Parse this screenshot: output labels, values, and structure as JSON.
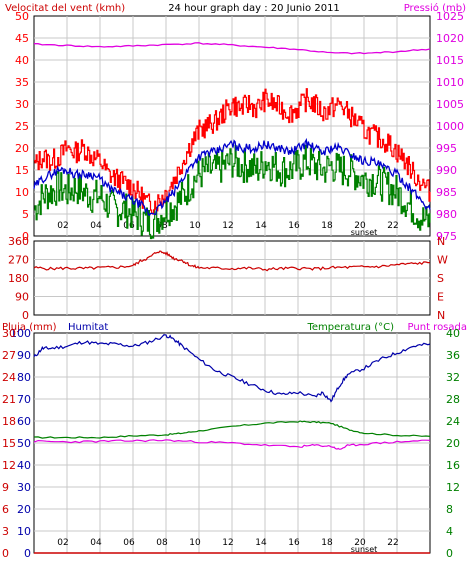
{
  "header": {
    "left": "Velocitat del vent (kmh)",
    "center": "24 hour graph day : 20 Junio 2011",
    "right": "Pressió (mb)"
  },
  "colors": {
    "wind_gust": "#ff0000",
    "wind_avg": "#0000cc",
    "wind_low": "#008000",
    "pressure": "#e000e0",
    "direction": "#cc0000",
    "humidity": "#0000aa",
    "temperature": "#008000",
    "dewpoint": "#e000e0",
    "rain": "#cc0000"
  },
  "chart_data": [
    {
      "type": "line",
      "id": "wind-pressure",
      "left_axis": {
        "label": "Velocitat del vent (kmh)",
        "ylim": [
          0,
          50
        ],
        "ticks": [
          "0",
          "5",
          "10",
          "15",
          "20",
          "25",
          "30",
          "35",
          "40",
          "45",
          "50"
        ]
      },
      "right_axis": {
        "label": "Pressió (mb)",
        "ylim": [
          975,
          1025
        ],
        "ticks": [
          "975",
          "980",
          "985",
          "990",
          "995",
          "1000",
          "1005",
          "1010",
          "1015",
          "1020",
          "1025"
        ]
      },
      "x_ticks": [
        "02",
        "04",
        "06",
        "08",
        "10",
        "12",
        "14",
        "16",
        "18",
        "20",
        "22"
      ],
      "x_extra": [
        "sunset"
      ],
      "grid": true,
      "series": [
        {
          "key": "gust",
          "hours": [
            0,
            0.5,
            1,
            1.5,
            2,
            2.5,
            3,
            3.5,
            4,
            4.5,
            5,
            5.5,
            6,
            6.5,
            7,
            7.5,
            8,
            8.5,
            9,
            9.5,
            10,
            10.5,
            11,
            11.5,
            12,
            12.5,
            13,
            13.5,
            14,
            14.5,
            15,
            15.5,
            16,
            16.5,
            17,
            17.5,
            18,
            18.5,
            19,
            19.5,
            20,
            20.5,
            21,
            21.5,
            22,
            22.5,
            23,
            23.5,
            24
          ],
          "values": [
            16,
            18,
            17,
            18,
            20,
            19,
            20,
            18,
            17,
            14,
            13,
            12,
            11,
            9,
            7,
            8,
            10,
            13,
            17,
            21,
            24,
            25,
            26,
            28,
            30,
            29,
            30,
            29,
            31,
            30,
            29,
            28,
            29,
            31,
            30,
            28,
            29,
            30,
            28,
            26,
            24,
            23,
            22,
            21,
            19,
            17,
            14,
            12,
            10
          ]
        },
        {
          "key": "avg",
          "hours": [
            0,
            0.5,
            1,
            1.5,
            2,
            2.5,
            3,
            3.5,
            4,
            4.5,
            5,
            5.5,
            6,
            6.5,
            7,
            7.5,
            8,
            8.5,
            9,
            9.5,
            10,
            10.5,
            11,
            11.5,
            12,
            12.5,
            13,
            13.5,
            14,
            14.5,
            15,
            15.5,
            16,
            16.5,
            17,
            17.5,
            18,
            18.5,
            19,
            19.5,
            20,
            20.5,
            21,
            21.5,
            22,
            22.5,
            23,
            23.5,
            24
          ],
          "values": [
            11,
            13,
            14,
            15,
            15,
            14,
            14,
            14,
            13,
            11,
            10,
            9,
            8,
            7,
            5,
            6,
            8,
            10,
            13,
            16,
            18,
            19,
            19,
            20,
            21,
            20,
            20,
            20,
            21,
            20,
            20,
            19,
            20,
            21,
            20,
            19,
            20,
            20,
            19,
            18,
            17,
            17,
            16,
            15,
            14,
            12,
            10,
            8,
            6
          ]
        },
        {
          "key": "low",
          "hours": [
            0,
            0.5,
            1,
            1.5,
            2,
            2.5,
            3,
            3.5,
            4,
            4.5,
            5,
            5.5,
            6,
            6.5,
            7,
            7.5,
            8,
            8.5,
            9,
            9.5,
            10,
            10.5,
            11,
            11.5,
            12,
            12.5,
            13,
            13.5,
            14,
            14.5,
            15,
            15.5,
            16,
            16.5,
            17,
            17.5,
            18,
            18.5,
            19,
            19.5,
            20,
            20.5,
            21,
            21.5,
            22,
            22.5,
            23,
            23.5,
            24
          ],
          "values": [
            6,
            9,
            10,
            11,
            10,
            11,
            10,
            9,
            9,
            7,
            6,
            6,
            5,
            4,
            3,
            4,
            6,
            7,
            9,
            12,
            14,
            15,
            15,
            16,
            17,
            16,
            16,
            15,
            17,
            16,
            15,
            15,
            16,
            17,
            16,
            15,
            16,
            15,
            15,
            14,
            13,
            13,
            12,
            11,
            10,
            8,
            6,
            4,
            3
          ]
        },
        {
          "key": "pressure",
          "hours": [
            0,
            2,
            4,
            6,
            8,
            10,
            12,
            14,
            16,
            18,
            20,
            22,
            24
          ],
          "values": [
            1018.6,
            1018.3,
            1018.0,
            1018.2,
            1018.5,
            1018.8,
            1018.4,
            1017.9,
            1017.4,
            1016.6,
            1016.5,
            1016.9,
            1017.5
          ]
        }
      ]
    },
    {
      "type": "line",
      "id": "direction",
      "left_axis": {
        "ylim": [
          0,
          360
        ],
        "ticks": [
          "0",
          "90",
          "180",
          "270",
          "360"
        ]
      },
      "right_axis": {
        "ticks": [
          "N",
          "E",
          "S",
          "W",
          "N"
        ]
      },
      "series": [
        {
          "key": "direction",
          "hours": [
            0,
            1,
            2,
            3,
            4,
            5,
            6,
            6.5,
            7,
            7.5,
            8,
            8.5,
            9,
            9.5,
            10,
            11,
            12,
            13,
            14,
            15,
            16,
            17,
            18,
            19,
            20,
            21,
            22,
            23,
            24
          ],
          "values": [
            230,
            225,
            228,
            226,
            230,
            232,
            240,
            265,
            280,
            310,
            300,
            275,
            265,
            240,
            230,
            228,
            226,
            228,
            222,
            226,
            228,
            224,
            230,
            232,
            234,
            236,
            245,
            250,
            255
          ]
        }
      ]
    },
    {
      "type": "line",
      "id": "humidity-temp",
      "left_axis_outer": {
        "label": "Pluja (mm)",
        "ticks": [
          "0",
          "3",
          "6",
          "9",
          "12",
          "15",
          "18",
          "21",
          "24",
          "27",
          "30"
        ]
      },
      "left_axis_inner": {
        "label": "Humitat",
        "ticks": [
          "0",
          "10",
          "20",
          "30",
          "40",
          "50",
          "60",
          "70",
          "80",
          "90",
          "100"
        ]
      },
      "right_axis": {
        "label": "Temperatura (°C)",
        "ticks": [
          "0",
          "4",
          "8",
          "12",
          "16",
          "20",
          "24",
          "28",
          "32",
          "36",
          "40"
        ]
      },
      "right_label_2": "Punt rosada",
      "x_ticks": [
        "02",
        "04",
        "06",
        "08",
        "10",
        "12",
        "14",
        "16",
        "18",
        "20",
        "22"
      ],
      "x_extra": [
        "sunset"
      ],
      "series": [
        {
          "key": "humidity",
          "hours": [
            0,
            0.5,
            1,
            2,
            3,
            4,
            5,
            6,
            7,
            8,
            8.5,
            9,
            10,
            11,
            12,
            13,
            14,
            15,
            16,
            17,
            17.5,
            18,
            18.5,
            19,
            20,
            21,
            22,
            23,
            24
          ],
          "values": [
            89,
            93,
            93,
            94,
            96,
            95,
            95,
            94,
            96,
            99,
            97,
            94,
            88,
            83,
            80,
            77,
            74,
            72,
            73,
            71,
            73,
            69,
            76,
            81,
            84,
            88,
            91,
            94,
            95
          ]
        },
        {
          "key": "temperature",
          "hours": [
            0,
            2,
            4,
            6,
            8,
            9,
            10,
            12,
            14,
            16,
            17,
            18,
            19,
            20,
            22,
            24
          ],
          "values": [
            21,
            21,
            21,
            21.3,
            21.5,
            21.8,
            22.2,
            23,
            23.6,
            23.9,
            23.8,
            23.6,
            22.5,
            21.8,
            21.4,
            21.2
          ]
        },
        {
          "key": "dewpoint",
          "hours": [
            0,
            2,
            4,
            6,
            8,
            10,
            12,
            14,
            16,
            17,
            18,
            18.5,
            19,
            20,
            22,
            24
          ],
          "values": [
            20.3,
            20.2,
            20.3,
            20.4,
            20.5,
            20.2,
            20,
            19.6,
            19.3,
            19.6,
            19.4,
            18.8,
            19.5,
            19.8,
            20.2,
            20.5
          ]
        },
        {
          "key": "rain",
          "hours": [
            0,
            24
          ],
          "values": [
            0,
            0
          ]
        }
      ]
    }
  ]
}
